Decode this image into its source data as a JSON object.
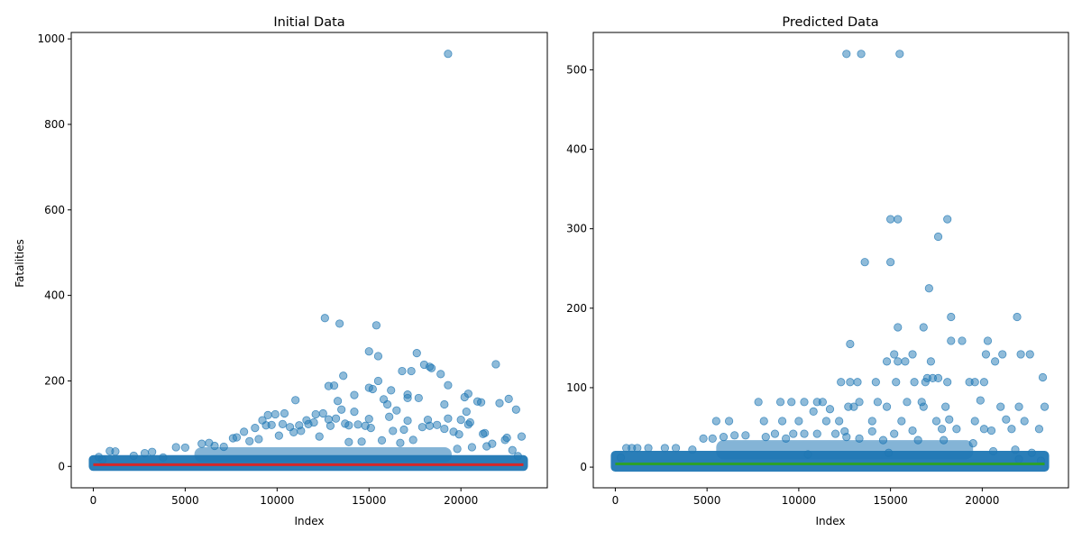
{
  "chart_data": [
    {
      "type": "scatter",
      "title": "Initial Data",
      "xlabel": "Index",
      "ylabel": "Fatalities",
      "xlim": [
        -1200,
        24700
      ],
      "ylim": [
        -50,
        1015
      ],
      "xticks": [
        0,
        5000,
        10000,
        15000,
        20000
      ],
      "yticks": [
        0,
        200,
        400,
        600,
        800,
        1000
      ],
      "point_color": "#1f77b4",
      "trend_line": {
        "color": "#d62728",
        "x": [
          0,
          23400
        ],
        "y": [
          4,
          4
        ]
      },
      "series": [
        {
          "values": [
            [
              19300,
              965
            ],
            [
              12600,
              347
            ],
            [
              13400,
              334
            ],
            [
              15400,
              330
            ],
            [
              15000,
              269
            ],
            [
              15500,
              258
            ],
            [
              17600,
              265
            ],
            [
              13600,
              212
            ],
            [
              21900,
              239
            ],
            [
              18000,
              238
            ],
            [
              18300,
              233
            ],
            [
              18400,
              230
            ],
            [
              17300,
              223
            ],
            [
              16800,
              223
            ],
            [
              18900,
              216
            ],
            [
              15500,
              200
            ],
            [
              13100,
              189
            ],
            [
              19300,
              190
            ],
            [
              12800,
              188
            ],
            [
              17700,
              160
            ],
            [
              16200,
              178
            ],
            [
              15200,
              181
            ],
            [
              15000,
              184
            ],
            [
              14200,
              167
            ],
            [
              15800,
              157
            ],
            [
              11000,
              155
            ],
            [
              13300,
              153
            ],
            [
              17100,
              168
            ],
            [
              20400,
              170
            ],
            [
              17100,
              160
            ],
            [
              20200,
              162
            ],
            [
              22600,
              158
            ],
            [
              22100,
              148
            ],
            [
              21100,
              150
            ],
            [
              20900,
              152
            ],
            [
              23000,
              133
            ],
            [
              19100,
              145
            ],
            [
              16000,
              145
            ],
            [
              16500,
              131
            ],
            [
              13500,
              133
            ],
            [
              14200,
              128
            ],
            [
              20300,
              128
            ],
            [
              12100,
              122
            ],
            [
              10400,
              124
            ],
            [
              9500,
              120
            ],
            [
              9900,
              122
            ],
            [
              12500,
              124
            ],
            [
              12800,
              110
            ],
            [
              13200,
              112
            ],
            [
              19300,
              112
            ],
            [
              18200,
              109
            ],
            [
              20000,
              109
            ],
            [
              17100,
              107
            ],
            [
              20500,
              103
            ],
            [
              16100,
              116
            ],
            [
              11600,
              108
            ],
            [
              9200,
              108
            ],
            [
              21300,
              78
            ],
            [
              21200,
              76
            ],
            [
              19900,
              75
            ],
            [
              23300,
              70
            ],
            [
              22500,
              67
            ],
            [
              22400,
              62
            ],
            [
              20400,
              98
            ],
            [
              18300,
              95
            ],
            [
              18700,
              97
            ],
            [
              17900,
              92
            ],
            [
              16900,
              86
            ],
            [
              16300,
              83
            ],
            [
              15000,
              111
            ],
            [
              15100,
              90
            ],
            [
              14400,
              98
            ],
            [
              14800,
              95
            ],
            [
              13900,
              96
            ],
            [
              13700,
              100
            ],
            [
              12900,
              95
            ],
            [
              12000,
              103
            ],
            [
              11700,
              99
            ],
            [
              11200,
              96
            ],
            [
              10700,
              92
            ],
            [
              10300,
              99
            ],
            [
              9700,
              97
            ],
            [
              9400,
              96
            ],
            [
              8800,
              90
            ],
            [
              8200,
              81
            ],
            [
              7800,
              68
            ],
            [
              7600,
              66
            ],
            [
              6300,
              55
            ],
            [
              5900,
              53
            ],
            [
              4500,
              45
            ],
            [
              5000,
              44
            ],
            [
              3200,
              34
            ],
            [
              2800,
              31
            ],
            [
              1200,
              35
            ],
            [
              900,
              36
            ],
            [
              19100,
              88
            ],
            [
              19600,
              81
            ],
            [
              21700,
              53
            ],
            [
              21400,
              47
            ],
            [
              22800,
              38
            ],
            [
              23100,
              24
            ],
            [
              20600,
              45
            ],
            [
              19800,
              41
            ],
            [
              17400,
              62
            ],
            [
              16700,
              55
            ],
            [
              15700,
              61
            ],
            [
              14600,
              58
            ],
            [
              13900,
              57
            ],
            [
              12300,
              70
            ],
            [
              11300,
              83
            ],
            [
              10900,
              80
            ],
            [
              10100,
              72
            ],
            [
              9000,
              64
            ],
            [
              8500,
              59
            ],
            [
              7100,
              46
            ],
            [
              6600,
              48
            ],
            [
              3800,
              21
            ],
            [
              2200,
              25
            ],
            [
              500,
              16
            ],
            [
              300,
              22
            ]
          ]
        }
      ]
    },
    {
      "type": "scatter",
      "title": "Predicted Data",
      "xlabel": "Index",
      "ylabel": "",
      "xlim": [
        -1200,
        24700
      ],
      "ylim": [
        -26,
        547
      ],
      "xticks": [
        0,
        5000,
        10000,
        15000,
        20000
      ],
      "yticks": [
        0,
        100,
        200,
        300,
        400,
        500
      ],
      "point_color": "#1f77b4",
      "trend_line": {
        "color": "#2ca02c",
        "x": [
          0,
          23400
        ],
        "y": [
          4,
          4
        ]
      },
      "series": [
        {
          "values": [
            [
              12600,
              520
            ],
            [
              13400,
              520
            ],
            [
              15500,
              520
            ],
            [
              15000,
              312
            ],
            [
              15400,
              312
            ],
            [
              18100,
              312
            ],
            [
              17600,
              290
            ],
            [
              13600,
              258
            ],
            [
              15000,
              258
            ],
            [
              17100,
              225
            ],
            [
              18300,
              189
            ],
            [
              21900,
              189
            ],
            [
              15400,
              176
            ],
            [
              16800,
              176
            ],
            [
              18300,
              159
            ],
            [
              18900,
              159
            ],
            [
              20300,
              159
            ],
            [
              12800,
              155
            ],
            [
              15200,
              142
            ],
            [
              16200,
              142
            ],
            [
              20200,
              142
            ],
            [
              21100,
              142
            ],
            [
              22100,
              142
            ],
            [
              22600,
              142
            ],
            [
              14800,
              133
            ],
            [
              15400,
              133
            ],
            [
              15800,
              133
            ],
            [
              17200,
              133
            ],
            [
              20700,
              133
            ],
            [
              23300,
              113
            ],
            [
              17000,
              112
            ],
            [
              17300,
              112
            ],
            [
              17600,
              112
            ],
            [
              12300,
              107
            ],
            [
              12800,
              107
            ],
            [
              13200,
              107
            ],
            [
              14200,
              107
            ],
            [
              15300,
              107
            ],
            [
              16300,
              107
            ],
            [
              16900,
              107
            ],
            [
              18100,
              107
            ],
            [
              19300,
              107
            ],
            [
              19600,
              107
            ],
            [
              20100,
              107
            ],
            [
              11000,
              82
            ],
            [
              7800,
              82
            ],
            [
              9000,
              82
            ],
            [
              9600,
              82
            ],
            [
              10300,
              82
            ],
            [
              11300,
              82
            ],
            [
              13300,
              82
            ],
            [
              14300,
              82
            ],
            [
              15900,
              82
            ],
            [
              16700,
              82
            ],
            [
              19900,
              84
            ],
            [
              21000,
              76
            ],
            [
              22000,
              76
            ],
            [
              23400,
              76
            ],
            [
              18000,
              76
            ],
            [
              16800,
              76
            ],
            [
              14800,
              76
            ],
            [
              13000,
              76
            ],
            [
              12700,
              76
            ],
            [
              11700,
              73
            ],
            [
              10800,
              70
            ],
            [
              9100,
              58
            ],
            [
              8100,
              58
            ],
            [
              5500,
              58
            ],
            [
              6200,
              58
            ],
            [
              10000,
              58
            ],
            [
              11500,
              58
            ],
            [
              12200,
              58
            ],
            [
              14000,
              58
            ],
            [
              15600,
              58
            ],
            [
              17500,
              58
            ],
            [
              19600,
              58
            ],
            [
              18200,
              60
            ],
            [
              21300,
              60
            ],
            [
              22300,
              58
            ],
            [
              23100,
              48
            ],
            [
              21600,
              48
            ],
            [
              20500,
              46
            ],
            [
              20100,
              48
            ],
            [
              18600,
              48
            ],
            [
              17800,
              48
            ],
            [
              16200,
              46
            ],
            [
              15200,
              42
            ],
            [
              14000,
              45
            ],
            [
              12500,
              45
            ],
            [
              12000,
              42
            ],
            [
              11000,
              42
            ],
            [
              10300,
              42
            ],
            [
              9700,
              42
            ],
            [
              8700,
              42
            ],
            [
              8200,
              38
            ],
            [
              7100,
              40
            ],
            [
              6500,
              40
            ],
            [
              5900,
              38
            ],
            [
              5300,
              36
            ],
            [
              4800,
              36
            ],
            [
              3300,
              24
            ],
            [
              2700,
              24
            ],
            [
              1800,
              24
            ],
            [
              1200,
              24
            ],
            [
              900,
              24
            ],
            [
              600,
              24
            ],
            [
              4200,
              22
            ],
            [
              22700,
              18
            ],
            [
              21800,
              22
            ],
            [
              19500,
              30
            ],
            [
              17900,
              34
            ],
            [
              16500,
              34
            ],
            [
              14600,
              34
            ],
            [
              13300,
              36
            ],
            [
              12600,
              38
            ],
            [
              9300,
              36
            ],
            [
              300,
              12
            ],
            [
              23200,
              8
            ],
            [
              22000,
              10
            ],
            [
              20600,
              20
            ],
            [
              14900,
              18
            ],
            [
              10500,
              16
            ]
          ]
        }
      ]
    }
  ]
}
